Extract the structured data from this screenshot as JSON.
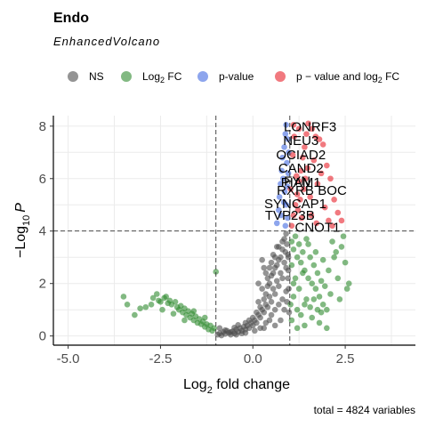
{
  "chart_data": {
    "type": "scatter",
    "title": "Endo",
    "subtitle": "EnhancedVolcano",
    "xlabel_main": "Log",
    "xlabel_sub": "2",
    "xlabel_rest": " fold change",
    "ylabel_prefix": "−Log",
    "ylabel_sub": "10",
    "ylabel_var": "P",
    "xlim": [
      -5.4,
      4.4
    ],
    "ylim": [
      -0.35,
      8.4
    ],
    "x_ticks": [
      {
        "value": -5.0,
        "label": "-5.0"
      },
      {
        "value": -2.5,
        "label": "-2.5"
      },
      {
        "value": 0.0,
        "label": "0.0"
      },
      {
        "value": 2.5,
        "label": "2.5"
      }
    ],
    "y_ticks": [
      {
        "value": 0,
        "label": "0"
      },
      {
        "value": 2,
        "label": "2"
      },
      {
        "value": 4,
        "label": "4"
      },
      {
        "value": 6,
        "label": "6"
      },
      {
        "value": 8,
        "label": "8"
      }
    ],
    "fc_cutoff": 1.0,
    "p_cutoff": 4.0,
    "grid": true,
    "legend_position": "top",
    "caption": "total = 4824 variables",
    "legend": [
      {
        "key": "NS",
        "label": "NS",
        "color": "#4d4d4d"
      },
      {
        "key": "fc",
        "label_main": "Log",
        "label_sub": "2",
        "label_rest": " FC",
        "color": "#2e8b2e"
      },
      {
        "key": "p",
        "label": "p-value",
        "color": "#4169e1"
      },
      {
        "key": "both",
        "label_main": "p − value and log",
        "label_sub": "2",
        "label_rest": " FC",
        "color": "#e8202a"
      }
    ],
    "series": [
      {
        "key": "NS",
        "color": "#4d4d4d",
        "points": [
          [
            -0.95,
            0.05
          ],
          [
            -0.9,
            0.1
          ],
          [
            -0.85,
            0.02
          ],
          [
            -0.8,
            0.15
          ],
          [
            -0.75,
            0.08
          ],
          [
            -0.7,
            0.2
          ],
          [
            -0.65,
            0.12
          ],
          [
            -0.6,
            0.05
          ],
          [
            -0.55,
            0.18
          ],
          [
            -0.5,
            0.1
          ],
          [
            -0.45,
            0.25
          ],
          [
            -0.4,
            0.15
          ],
          [
            -0.35,
            0.3
          ],
          [
            -0.3,
            0.2
          ],
          [
            -0.25,
            0.35
          ],
          [
            -0.2,
            0.25
          ],
          [
            -0.15,
            0.4
          ],
          [
            -0.1,
            0.3
          ],
          [
            -0.05,
            0.5
          ],
          [
            0.0,
            0.4
          ],
          [
            0.05,
            0.6
          ],
          [
            0.1,
            0.5
          ],
          [
            0.15,
            0.8
          ],
          [
            0.2,
            0.7
          ],
          [
            0.25,
            1.0
          ],
          [
            0.3,
            0.9
          ],
          [
            0.35,
            1.2
          ],
          [
            0.4,
            1.1
          ],
          [
            0.45,
            1.5
          ],
          [
            0.5,
            1.3
          ],
          [
            0.55,
            1.8
          ],
          [
            0.6,
            1.6
          ],
          [
            0.65,
            2.1
          ],
          [
            0.7,
            1.9
          ],
          [
            0.75,
            2.4
          ],
          [
            0.8,
            2.2
          ],
          [
            0.85,
            2.8
          ],
          [
            0.9,
            2.6
          ],
          [
            0.95,
            3.1
          ],
          [
            0.92,
            3.5
          ],
          [
            0.88,
            3.2
          ],
          [
            0.3,
            1.4
          ],
          [
            0.4,
            1.9
          ],
          [
            0.5,
            2.3
          ],
          [
            0.6,
            2.6
          ],
          [
            0.7,
            2.9
          ],
          [
            0.8,
            3.3
          ],
          [
            0.85,
            3.7
          ],
          [
            0.2,
            1.1
          ],
          [
            0.35,
            1.6
          ],
          [
            0.45,
            2.0
          ],
          [
            0.55,
            2.4
          ],
          [
            0.65,
            2.7
          ],
          [
            0.75,
            3.0
          ],
          [
            0.25,
            2.9
          ],
          [
            0.3,
            2.6
          ],
          [
            0.4,
            2.2
          ],
          [
            0.5,
            2.8
          ],
          [
            0.6,
            3.0
          ],
          [
            0.7,
            3.4
          ],
          [
            0.1,
            0.9
          ],
          [
            0.0,
            0.7
          ],
          [
            -0.1,
            0.6
          ],
          [
            -0.2,
            0.5
          ],
          [
            0.15,
            1.3
          ],
          [
            0.5,
            0.8
          ],
          [
            0.6,
            1.0
          ],
          [
            0.7,
            1.2
          ],
          [
            0.8,
            1.4
          ],
          [
            0.9,
            1.7
          ],
          [
            0.45,
            0.6
          ],
          [
            0.35,
            0.5
          ],
          [
            0.2,
            0.3
          ],
          [
            0.3,
            0.3
          ],
          [
            -0.3,
            0.1
          ],
          [
            -0.45,
            0.05
          ],
          [
            -0.6,
            0.15
          ],
          [
            -0.75,
            0.22
          ],
          [
            -0.9,
            0.3
          ],
          [
            -0.5,
            0.32
          ],
          [
            -0.4,
            0.42
          ],
          [
            -0.2,
            0.12
          ],
          [
            0.05,
            0.2
          ],
          [
            0.6,
            0.4
          ],
          [
            0.75,
            0.6
          ],
          [
            0.85,
            1.0
          ],
          [
            0.95,
            2.2
          ],
          [
            0.92,
            1.3
          ],
          [
            0.98,
            0.9
          ],
          [
            0.97,
            1.8
          ],
          [
            0.96,
            2.5
          ],
          [
            0.96,
            3.0
          ],
          [
            0.55,
            3.1
          ],
          [
            0.65,
            3.4
          ],
          [
            0.8,
            3.6
          ],
          [
            0.9,
            3.9
          ],
          [
            0.45,
            2.6
          ],
          [
            0.25,
            1.8
          ],
          [
            0.15,
            2.0
          ],
          [
            0.35,
            2.4
          ]
        ]
      },
      {
        "key": "fc",
        "color": "#2e8b2e",
        "points": [
          [
            -3.5,
            1.5
          ],
          [
            -3.4,
            1.2
          ],
          [
            -3.2,
            0.8
          ],
          [
            -3.05,
            1.05
          ],
          [
            -2.9,
            1.1
          ],
          [
            -2.7,
            1.45
          ],
          [
            -2.6,
            1.6
          ],
          [
            -2.55,
            1.35
          ],
          [
            -2.5,
            1.3
          ],
          [
            -2.4,
            1.45
          ],
          [
            -2.3,
            1.25
          ],
          [
            -2.25,
            1.35
          ],
          [
            -2.2,
            1.2
          ],
          [
            -2.1,
            1.3
          ],
          [
            -2.05,
            1.1
          ],
          [
            -2.0,
            1.0
          ],
          [
            -1.95,
            1.15
          ],
          [
            -1.9,
            0.9
          ],
          [
            -1.85,
            1.05
          ],
          [
            -1.8,
            0.8
          ],
          [
            -1.75,
            0.95
          ],
          [
            -1.7,
            0.7
          ],
          [
            -1.65,
            0.85
          ],
          [
            -1.6,
            0.6
          ],
          [
            -1.55,
            0.75
          ],
          [
            -1.5,
            0.5
          ],
          [
            -1.45,
            0.65
          ],
          [
            -1.4,
            0.45
          ],
          [
            -1.35,
            0.55
          ],
          [
            -1.3,
            0.35
          ],
          [
            -1.25,
            0.45
          ],
          [
            -1.2,
            0.25
          ],
          [
            -1.15,
            0.4
          ],
          [
            -1.1,
            0.2
          ],
          [
            -1.05,
            0.3
          ],
          [
            -2.45,
            1.0
          ],
          [
            -2.15,
            0.85
          ],
          [
            -1.85,
            0.6
          ],
          [
            -2.35,
            1.5
          ],
          [
            -2.75,
            1.2
          ],
          [
            -1.6,
            0.95
          ],
          [
            -1.3,
            0.7
          ],
          [
            -1.0,
            2.45
          ],
          [
            1.05,
            3.6
          ],
          [
            1.1,
            3.3
          ],
          [
            1.15,
            3.8
          ],
          [
            1.2,
            3.0
          ],
          [
            1.25,
            3.5
          ],
          [
            1.3,
            2.8
          ],
          [
            1.35,
            3.2
          ],
          [
            1.4,
            2.5
          ],
          [
            1.45,
            3.7
          ],
          [
            1.5,
            2.2
          ],
          [
            1.55,
            3.0
          ],
          [
            1.6,
            2.0
          ],
          [
            1.65,
            2.7
          ],
          [
            1.7,
            1.8
          ],
          [
            1.75,
            2.4
          ],
          [
            1.8,
            1.5
          ],
          [
            1.85,
            2.1
          ],
          [
            1.9,
            1.2
          ],
          [
            1.95,
            1.9
          ],
          [
            2.0,
            1.0
          ],
          [
            2.1,
            1.6
          ],
          [
            2.2,
            3.0
          ],
          [
            2.3,
            2.2
          ],
          [
            2.4,
            3.4
          ],
          [
            2.5,
            2.8
          ],
          [
            2.55,
            1.8
          ],
          [
            1.1,
            1.5
          ],
          [
            1.2,
            1.0
          ],
          [
            1.3,
            0.8
          ],
          [
            1.4,
            1.2
          ],
          [
            1.05,
            0.6
          ],
          [
            1.15,
            2.2
          ],
          [
            1.25,
            1.8
          ],
          [
            1.35,
            2.4
          ],
          [
            1.45,
            1.4
          ],
          [
            1.55,
            1.1
          ],
          [
            1.65,
            1.4
          ],
          [
            1.75,
            1.0
          ],
          [
            1.85,
            0.9
          ],
          [
            1.05,
            2.7
          ],
          [
            1.5,
            3.5
          ],
          [
            1.7,
            3.2
          ],
          [
            1.9,
            2.9
          ],
          [
            2.05,
            2.5
          ],
          [
            2.15,
            3.6
          ],
          [
            2.25,
            3.2
          ],
          [
            2.35,
            1.4
          ],
          [
            2.45,
            3.8
          ],
          [
            1.1,
            2.0
          ],
          [
            1.02,
            1.2
          ],
          [
            1.6,
            0.7
          ],
          [
            1.8,
            0.5
          ],
          [
            2.0,
            0.3
          ],
          [
            1.4,
            0.4
          ],
          [
            1.2,
            0.3
          ],
          [
            2.6,
            2.0
          ]
        ]
      },
      {
        "key": "p",
        "color": "#4169e1",
        "points": [
          [
            0.65,
            4.3
          ],
          [
            0.7,
            4.8
          ],
          [
            0.72,
            5.3
          ],
          [
            0.75,
            5.8
          ],
          [
            0.78,
            6.3
          ],
          [
            0.8,
            6.8
          ],
          [
            0.85,
            7.2
          ],
          [
            0.88,
            7.7
          ],
          [
            0.9,
            8.05
          ],
          [
            0.95,
            7.5
          ],
          [
            0.92,
            6.6
          ],
          [
            0.82,
            6.0
          ],
          [
            0.86,
            5.5
          ],
          [
            0.9,
            5.0
          ],
          [
            0.94,
            4.5
          ],
          [
            0.96,
            6.2
          ],
          [
            0.88,
            4.2
          ],
          [
            0.76,
            4.6
          ],
          [
            0.84,
            5.1
          ],
          [
            0.93,
            5.7
          ],
          [
            0.97,
            7.0
          ]
        ]
      },
      {
        "key": "both",
        "color": "#e8202a",
        "points": [
          [
            1.05,
            4.2
          ],
          [
            1.1,
            4.6
          ],
          [
            1.15,
            5.0
          ],
          [
            1.2,
            5.4
          ],
          [
            1.25,
            5.9
          ],
          [
            1.3,
            6.3
          ],
          [
            1.35,
            6.8
          ],
          [
            1.4,
            7.2
          ],
          [
            1.45,
            7.7
          ],
          [
            1.5,
            8.1
          ],
          [
            1.6,
            7.9
          ],
          [
            1.7,
            7.6
          ],
          [
            1.8,
            7.5
          ],
          [
            1.9,
            7.3
          ],
          [
            2.0,
            6.5
          ],
          [
            2.1,
            6.0
          ],
          [
            2.2,
            5.2
          ],
          [
            2.3,
            4.7
          ],
          [
            2.4,
            4.4
          ],
          [
            1.08,
            6.9
          ],
          [
            1.12,
            7.6
          ],
          [
            1.18,
            6.1
          ],
          [
            1.22,
            4.8
          ],
          [
            1.28,
            5.2
          ],
          [
            1.32,
            4.5
          ],
          [
            1.38,
            5.6
          ],
          [
            1.42,
            6.0
          ],
          [
            1.48,
            6.4
          ],
          [
            1.55,
            5.3
          ],
          [
            1.65,
            6.7
          ],
          [
            1.75,
            5.8
          ],
          [
            1.85,
            6.2
          ],
          [
            1.95,
            4.9
          ],
          [
            2.05,
            4.4
          ],
          [
            2.15,
            4.2
          ],
          [
            1.02,
            5.6
          ],
          [
            1.1,
            8.05
          ],
          [
            1.25,
            7.9
          ],
          [
            1.58,
            4.6
          ],
          [
            1.72,
            4.3
          ]
        ]
      }
    ],
    "gene_labels": [
      {
        "text": "LONRF3",
        "x": 1.55,
        "y": 7.97
      },
      {
        "text": "NEU3",
        "x": 1.3,
        "y": 7.45
      },
      {
        "text": "OCIAD2",
        "x": 1.3,
        "y": 6.9
      },
      {
        "text": "CAND2",
        "x": 1.3,
        "y": 6.4
      },
      {
        "text": "FYN",
        "x": 1.2,
        "y": 5.9
      },
      {
        "text": "PIAM1",
        "x": 1.3,
        "y": 5.85
      },
      {
        "text": "RXRB",
        "x": 1.15,
        "y": 5.55
      },
      {
        "text": "BOC",
        "x": 2.15,
        "y": 5.55
      },
      {
        "text": "SYNCAP1",
        "x": 1.15,
        "y": 5.05
      },
      {
        "text": "TVP23B",
        "x": 1.0,
        "y": 4.6
      },
      {
        "text": "CNOT1",
        "x": 1.75,
        "y": 4.15
      }
    ]
  }
}
